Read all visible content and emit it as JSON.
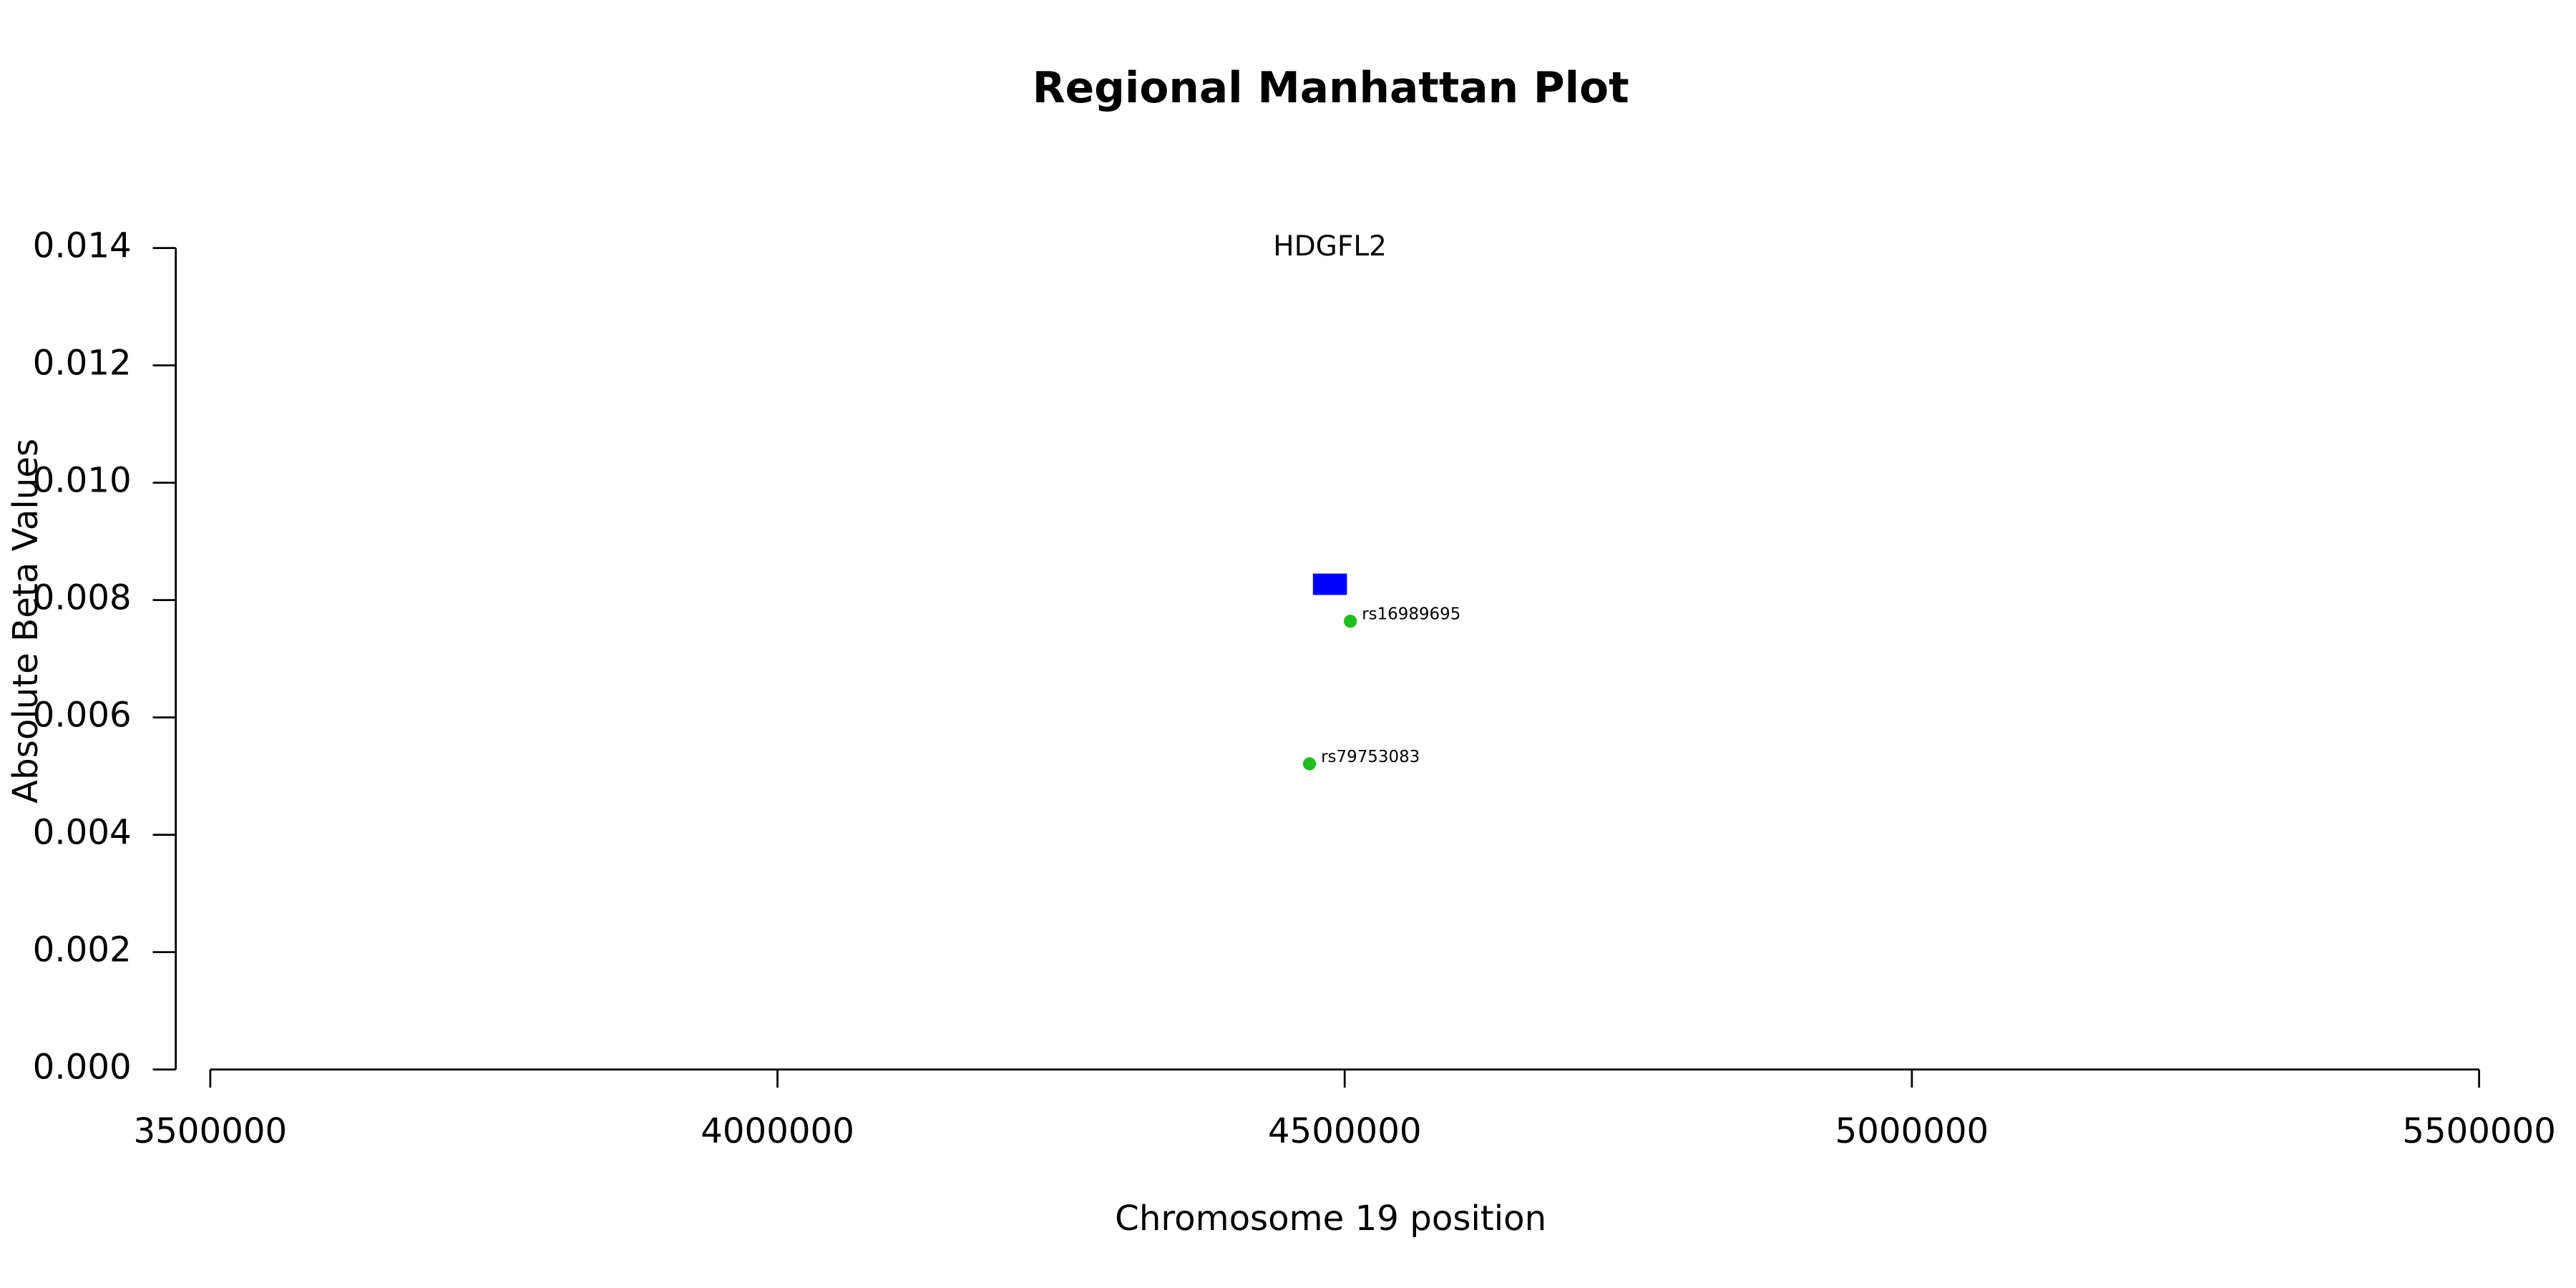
{
  "chart_data": {
    "type": "scatter",
    "title": "Regional Manhattan Plot",
    "x_label": "Chromosome 19 position",
    "y_label": "Absolute Beta Values",
    "xlim": [
      3500000,
      5500000
    ],
    "xticks": [
      3500000,
      4000000,
      4500000,
      5000000,
      5500000
    ],
    "ylim": [
      0,
      0.014
    ],
    "yticks": [
      {
        "value": 0,
        "label": "0.000"
      },
      0.002,
      0.004,
      0.006,
      0.008,
      {
        "value": 0.01,
        "label": "0.010"
      },
      0.012,
      0.014
    ],
    "series": [
      {
        "color": "#1fbf1f",
        "labels": [
          "rs16989695",
          "rs79753083"
        ],
        "x": [
          4505000,
          4469000
        ],
        "values": [
          0.00764,
          0.00521
        ]
      }
    ],
    "gene": {
      "name": "HDGFL2",
      "start": 4472000,
      "end": 4502000,
      "value": 0.00827,
      "color": "#0000ff"
    }
  }
}
